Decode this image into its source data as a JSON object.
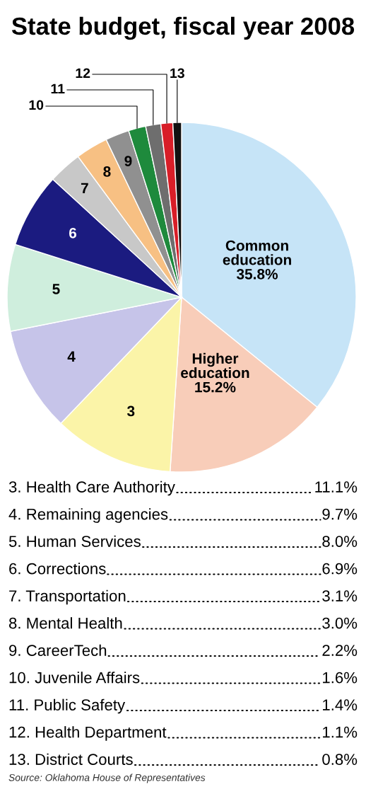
{
  "chart_data": {
    "type": "pie",
    "title": "State budget, fiscal year 2008",
    "categories": [
      "Common education",
      "Higher education",
      "3",
      "4",
      "5",
      "6",
      "7",
      "8",
      "9",
      "10",
      "11",
      "12",
      "13"
    ],
    "values": [
      35.8,
      15.2,
      11.1,
      9.7,
      8.0,
      6.9,
      3.1,
      3.0,
      2.2,
      1.6,
      1.4,
      1.1,
      0.8
    ],
    "value_labels": [
      "35.8%",
      "15.2%",
      null,
      null,
      null,
      null,
      null,
      null,
      null,
      null,
      null,
      null,
      null
    ],
    "colors": [
      "#c6e4f7",
      "#f8cdb9",
      "#fbf4a8",
      "#c6c4e9",
      "#cfeedd",
      "#1b1b80",
      "#c8c8c8",
      "#f7c083",
      "#909090",
      "#1e8a3c",
      "#6e6e6e",
      "#d81e28",
      "#111111"
    ],
    "annotations": [
      "3. Health Care Authority",
      "11.1%",
      "4. Remaining agencies",
      "9.7%",
      "5. Human Services",
      "8.0%",
      "6. Corrections",
      "6.9%",
      "7. Transportation",
      "3.1%",
      "8. Mental Health",
      "3.0%",
      "9. CareerTech",
      "2.2%",
      "10. Juvenile Affairs",
      "1.6%",
      "11. Public Safety",
      "1.4%",
      "12. Health Department",
      "1.1%",
      "13. District Courts",
      "0.8%",
      "Source: Oklahoma House of Representatives"
    ]
  }
}
